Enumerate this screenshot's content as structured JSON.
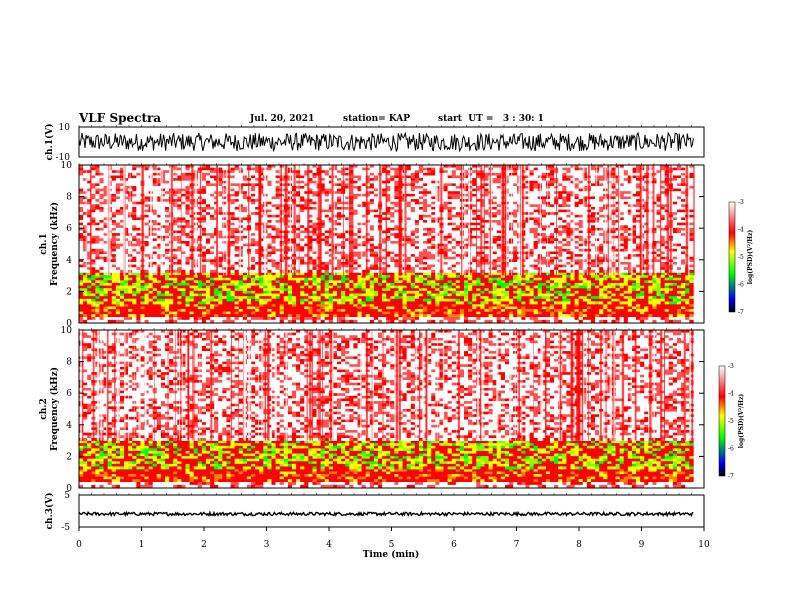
{
  "header": {
    "title": "VLF Spectra",
    "date": "Jul. 20, 2021",
    "station": "station= KAP",
    "start_ut": "start  UT =   3 : 30: 1"
  },
  "chart_data": [
    {
      "type": "line",
      "title": "",
      "ylabel": "ch.1(V)",
      "ylim": [
        -10,
        10
      ],
      "y_ticks": [
        "10",
        "-10"
      ],
      "xlim": [
        0,
        10
      ],
      "description_values": {
        "typical_range": [
          -6,
          6
        ],
        "series_color": "#000000"
      }
    },
    {
      "type": "heatmap",
      "ylabel_line1": "ch.1",
      "ylabel_line2": "Frequency (kHz)",
      "ylim": [
        0,
        10
      ],
      "y_ticks": [
        "10",
        "8",
        "6",
        "4",
        "2",
        "0"
      ],
      "xlim": [
        0,
        9.83
      ],
      "colorbar": {
        "label": "log(PSD)(V²/Hz)",
        "range": [
          -7,
          -3
        ],
        "ticks": [
          "-3",
          "-4",
          "-5",
          "-6",
          "-7"
        ],
        "colors": [
          "#000000",
          "#0000ff",
          "#00ff00",
          "#ffff00",
          "#ff0000",
          "#ffffff"
        ]
      },
      "bands_khz": [
        {
          "from": 0,
          "to": 0.4,
          "level": -3.4
        },
        {
          "from": 0.4,
          "to": 1.2,
          "level": -4.3
        },
        {
          "from": 1.2,
          "to": 3.2,
          "level": -4.8
        },
        {
          "from": 3.2,
          "to": 10,
          "level": -3.6
        }
      ]
    },
    {
      "type": "heatmap",
      "ylabel_line1": "ch.2",
      "ylabel_line2": "Frequency (kHz)",
      "ylim": [
        0,
        10
      ],
      "y_ticks": [
        "10",
        "8",
        "6",
        "4",
        "2",
        "0"
      ],
      "xlim": [
        0,
        9.83
      ],
      "colorbar": {
        "label": "log(PSD)(V²/Hz)",
        "range": [
          -7,
          -3
        ],
        "ticks": [
          "-3",
          "-4",
          "-5",
          "-6",
          "-7"
        ],
        "colors": [
          "#000000",
          "#0000ff",
          "#00ff00",
          "#ffff00",
          "#ff0000",
          "#ffffff"
        ]
      },
      "bands_khz": [
        {
          "from": 0,
          "to": 0.4,
          "level": -3.4
        },
        {
          "from": 0.4,
          "to": 1.2,
          "level": -4.3
        },
        {
          "from": 1.2,
          "to": 3.0,
          "level": -5.0
        },
        {
          "from": 3.0,
          "to": 10,
          "level": -3.5
        }
      ]
    },
    {
      "type": "line",
      "ylabel": "ch.3(V)",
      "ylim": [
        -5,
        5
      ],
      "y_ticks": [
        "5",
        "-5"
      ],
      "xlim": [
        0,
        10
      ],
      "xlabel": "Time (min)",
      "x_ticks": [
        "0",
        "1",
        "2",
        "3",
        "4",
        "5",
        "6",
        "7",
        "8",
        "9",
        "10"
      ],
      "description_values": {
        "typical_range": [
          -1.2,
          -0.6
        ],
        "series_color": "#000000"
      }
    }
  ]
}
